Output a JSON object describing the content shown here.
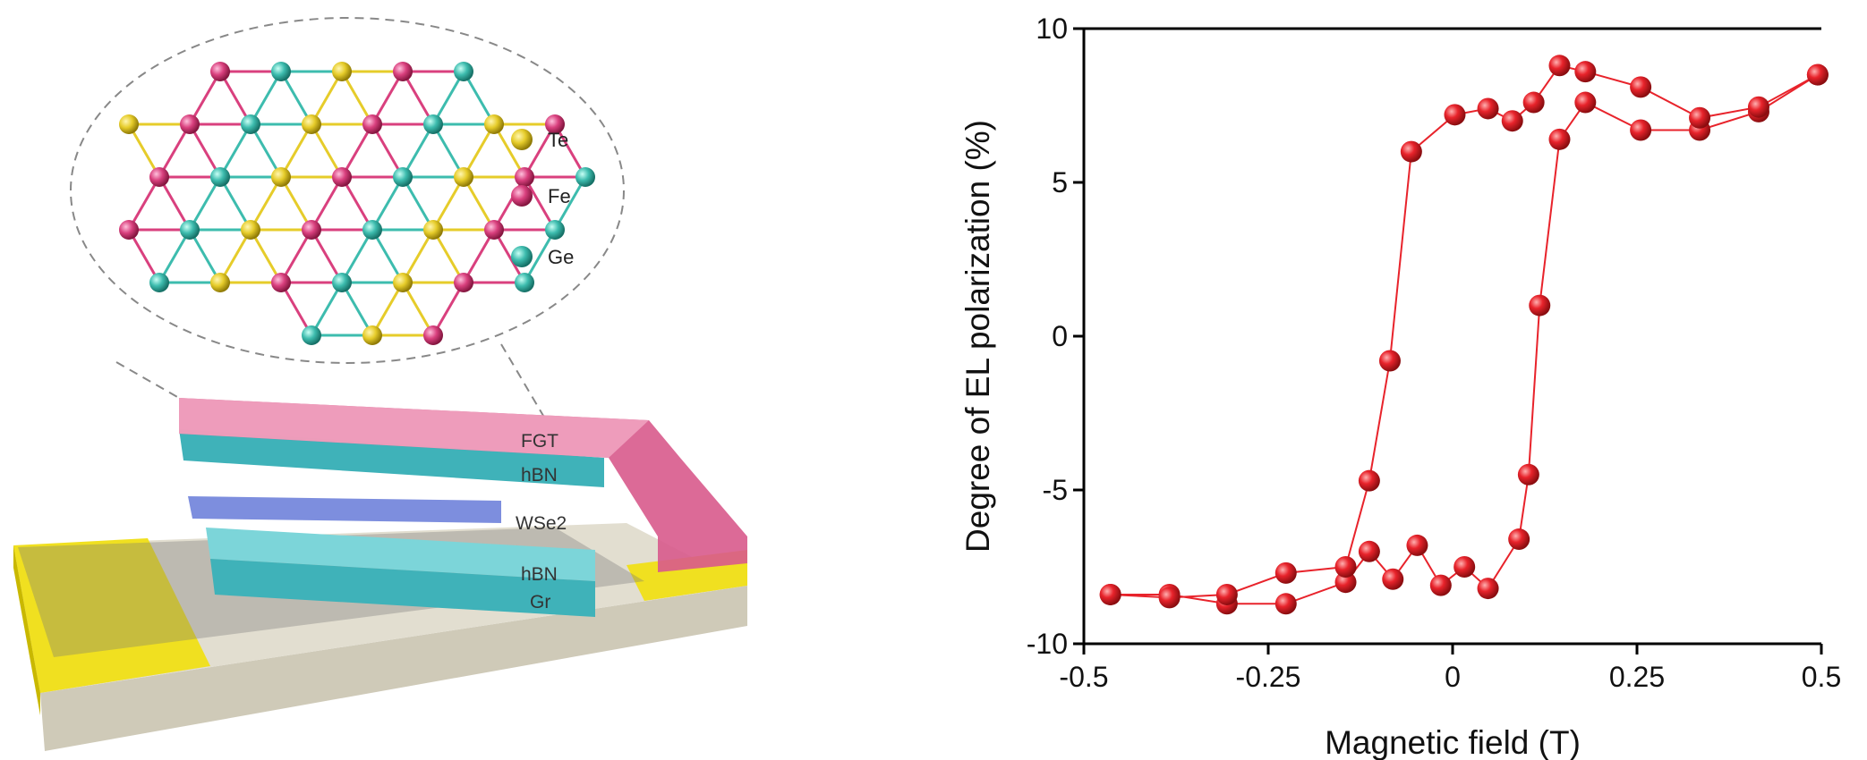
{
  "schematic": {
    "legend": [
      "Te",
      "Fe",
      "Ge"
    ],
    "layers": [
      "FGT",
      "hBN",
      "WSe2",
      "hBN",
      "Gr"
    ]
  },
  "chart_data": {
    "type": "line",
    "xlabel": "Magnetic field (T)",
    "ylabel": "Degree of EL polarization (%)",
    "color": "#e8232b",
    "series": [
      {
        "x": [
          -0.464,
          -0.384,
          -0.306,
          -0.226,
          -0.145,
          -0.113,
          -0.081,
          -0.048,
          -0.016,
          0.016,
          0.048,
          0.09,
          0.103,
          0.118,
          0.145,
          0.18,
          0.255,
          0.335,
          0.415,
          0.495
        ],
        "values": [
          -8.4,
          -8.4,
          -8.7,
          -8.7,
          -8.0,
          -7.0,
          -7.9,
          -6.8,
          -8.1,
          -7.5,
          -8.2,
          -6.6,
          -4.5,
          1.0,
          6.4,
          7.6,
          6.7,
          6.7,
          7.3,
          8.5
        ]
      },
      {
        "x": [
          0.495,
          0.415,
          0.335,
          0.255,
          0.18,
          0.145,
          0.11,
          0.081,
          0.048,
          0.003,
          -0.056,
          -0.085,
          -0.113,
          -0.145,
          -0.226,
          -0.306,
          -0.384,
          -0.464
        ],
        "values": [
          8.5,
          7.45,
          7.1,
          8.1,
          8.6,
          8.8,
          7.6,
          7.0,
          7.4,
          7.2,
          6.0,
          -0.8,
          -4.7,
          -7.5,
          -7.7,
          -8.4,
          -8.5,
          -8.4
        ]
      }
    ],
    "xlim": [
      -0.5,
      0.5
    ],
    "xticks": [
      -0.5,
      -0.25,
      0,
      0.25,
      0.5
    ],
    "ylim": [
      -10,
      10
    ],
    "yticks": [
      -10,
      -5,
      0,
      5,
      10
    ]
  }
}
